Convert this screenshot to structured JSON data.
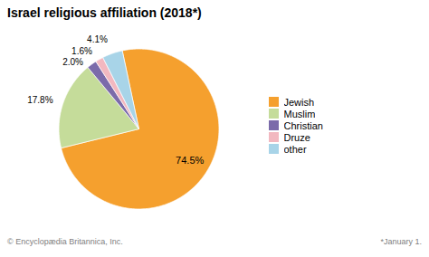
{
  "chart_data": {
    "type": "pie",
    "title": "Israel religious affiliation (2018*)",
    "categories": [
      "Jewish",
      "Muslim",
      "Christian",
      "Druze",
      "other"
    ],
    "values": [
      74.5,
      17.8,
      2.0,
      1.6,
      4.1
    ],
    "value_labels": [
      "74.5%",
      "17.8%",
      "2.0%",
      "1.6%",
      "4.1%"
    ],
    "colors": [
      "#F5A02E",
      "#C5DC9A",
      "#7B6BAA",
      "#F2B8C0",
      "#A8D4E8"
    ],
    "data_labels": true,
    "legend": "right",
    "annotations": [
      "© Encyclopædia Britannica, Inc.",
      "*January 1."
    ]
  }
}
